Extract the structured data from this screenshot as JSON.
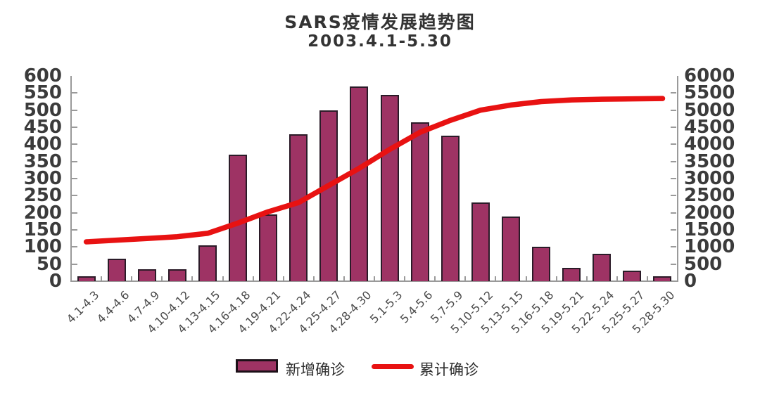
{
  "title": "SARS疫情发展趋势图",
  "subtitle": "2003.4.1-5.30",
  "legend": {
    "bar_label": "新增确诊",
    "line_label": "累计确诊"
  },
  "colors": {
    "bar_fill": "#9e3364",
    "bar_border": "#2b1b28",
    "line": "#e81212",
    "axis": "#9a9a9a",
    "text": "#3b3b3b"
  },
  "chart_data": {
    "type": "bar",
    "title": "SARS疫情发展趋势图",
    "subtitle": "2003.4.1-5.30",
    "categories": [
      "4.1-4.3",
      "4.4-4.6",
      "4.7-4.9",
      "4.10-4.12",
      "4.13-4.15",
      "4.16-4.18",
      "4.19-4.21",
      "4.22-4.24",
      "4.25-4.27",
      "4.28-4.30",
      "5.1-5.3",
      "5.4-5.6",
      "5.7-5.9",
      "5.10-5.12",
      "5.13-5.15",
      "5.16-5.18",
      "5.19-5.21",
      "5.22-5.24",
      "5.25-5.27",
      "5.28-5.30"
    ],
    "series": [
      {
        "name": "新增确诊",
        "chart_type": "bar",
        "y_axis": "left",
        "values": [
          15,
          65,
          35,
          35,
          105,
          370,
          195,
          430,
          500,
          570,
          545,
          465,
          425,
          230,
          190,
          100,
          40,
          80,
          30,
          15
        ]
      },
      {
        "name": "累计确诊",
        "chart_type": "line",
        "y_axis": "right",
        "values": [
          1150,
          1200,
          1250,
          1300,
          1400,
          1700,
          2030,
          2300,
          2800,
          3300,
          3850,
          4350,
          4700,
          5000,
          5150,
          5250,
          5300,
          5320,
          5330,
          5340
        ]
      }
    ],
    "left_axis": {
      "min": 0,
      "max": 600,
      "step": 50
    },
    "right_axis": {
      "min": 0,
      "max": 6000,
      "step": 500
    },
    "grid": false,
    "legend_position": "bottom"
  }
}
